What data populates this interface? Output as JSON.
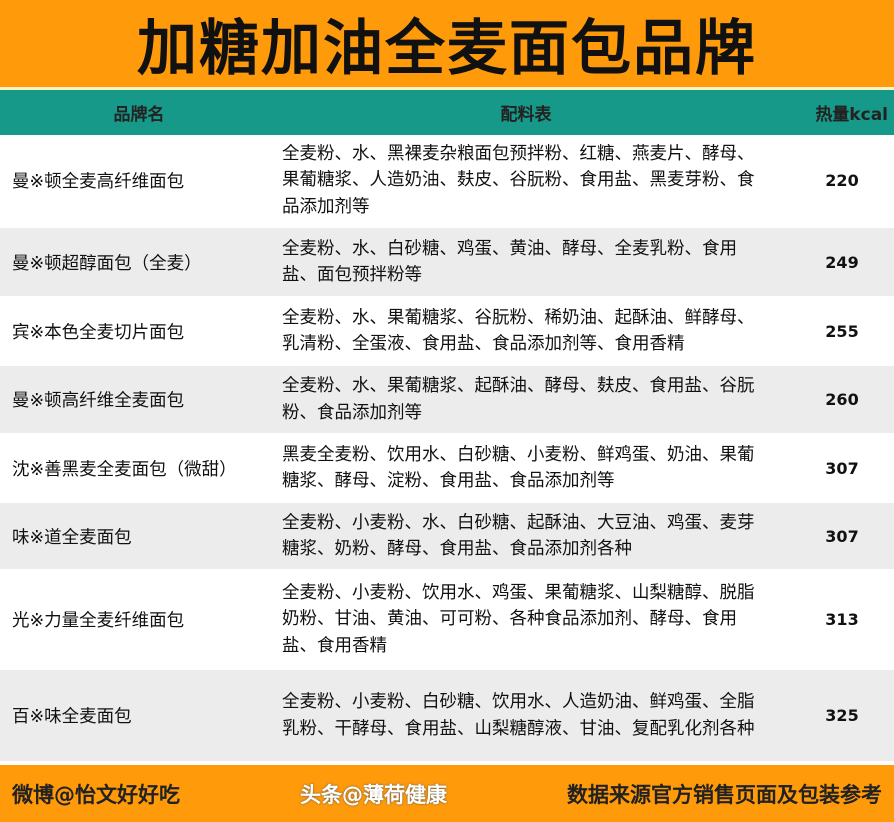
{
  "title": "加糖加油全麦面包品牌",
  "columns": [
    "品牌名",
    "配料表",
    "热量kcal"
  ],
  "rows": [
    {
      "brand": "曼※顿全麦高纤维面包",
      "ingredients": "全麦粉、水、黑裸麦杂粮面包预拌粉、红糖、燕麦片、酵母、果葡糖浆、人造奶油、麸皮、谷朊粉、食用盐、黑麦芽粉、食品添加剂等",
      "kcal": "220"
    },
    {
      "brand": "曼※顿超醇面包（全麦）",
      "ingredients": "全麦粉、水、白砂糖、鸡蛋、黄油、酵母、全麦乳粉、食用盐、面包预拌粉等",
      "kcal": "249"
    },
    {
      "brand": "宾※本色全麦切片面包",
      "ingredients": "全麦粉、水、果葡糖浆、谷朊粉、稀奶油、起酥油、鲜酵母、乳清粉、全蛋液、食用盐、食品添加剂等、食用香精",
      "kcal": "255"
    },
    {
      "brand": "曼※顿高纤维全麦面包",
      "ingredients": "全麦粉、水、果葡糖浆、起酥油、酵母、麸皮、食用盐、谷朊粉、食品添加剂等",
      "kcal": "260"
    },
    {
      "brand": "沈※善黑麦全麦面包（微甜）",
      "ingredients": "黑麦全麦粉、饮用水、白砂糖、小麦粉、鲜鸡蛋、奶油、果葡糖浆、酵母、淀粉、食用盐、食品添加剂等",
      "kcal": "307"
    },
    {
      "brand": "味※道全麦面包",
      "ingredients": "全麦粉、小麦粉、水、白砂糖、起酥油、大豆油、鸡蛋、麦芽糖浆、奶粉、酵母、食用盐、食品添加剂各种",
      "kcal": "307"
    },
    {
      "brand": "光※力量全麦纤维面包",
      "ingredients": "全麦粉、小麦粉、饮用水、鸡蛋、果葡糖浆、山梨糖醇、脱脂奶粉、甘油、黄油、可可粉、各种食品添加剂、酵母、食用盐、食用香精",
      "kcal": "313"
    },
    {
      "brand": "百※味全麦面包",
      "ingredients": "全麦粉、小麦粉、白砂糖、饮用水、人造奶油、鲜鸡蛋、全脂乳粉、干酵母、食用盐、山梨糖醇液、甘油、复配乳化剂各种",
      "kcal": "325"
    }
  ],
  "footer": {
    "left": "微博@怡文好好吃",
    "right": "数据来源官方销售页面及包装参考",
    "watermark": "头条@薄荷健康"
  },
  "colors": {
    "accent": "#ff9a0a",
    "header": "#17998a"
  }
}
